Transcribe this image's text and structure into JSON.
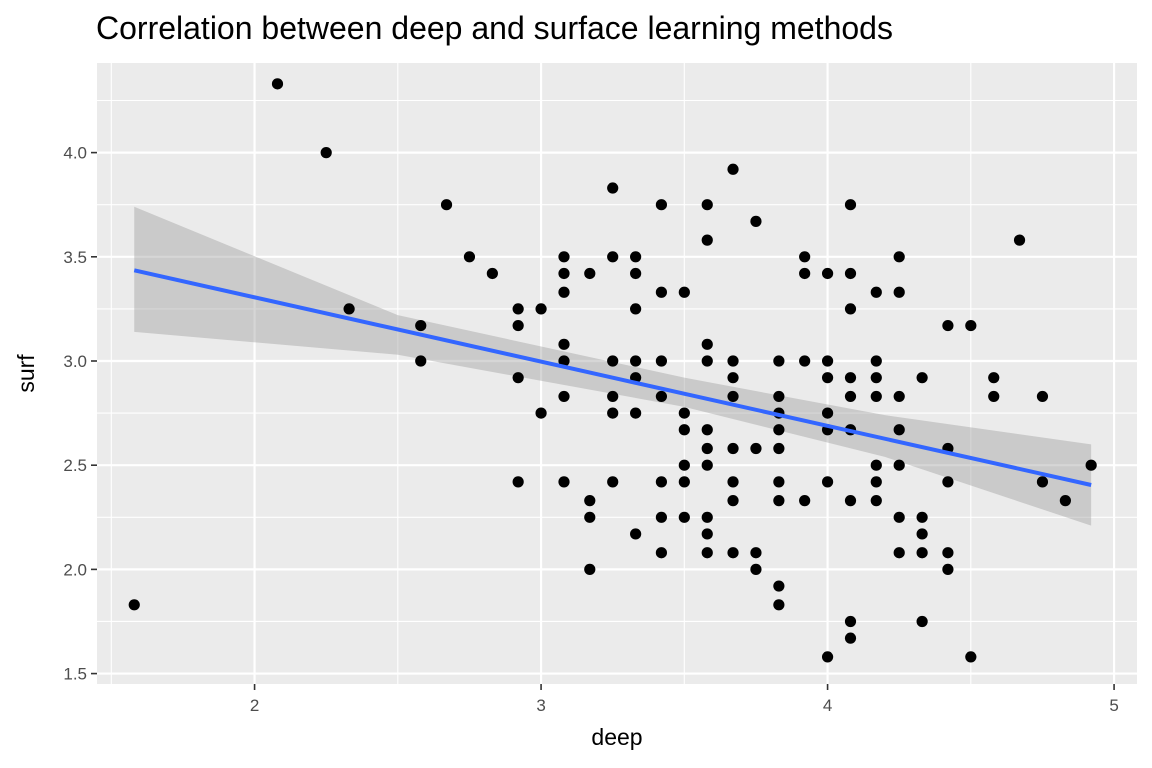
{
  "chart_data": {
    "type": "scatter",
    "title": "Correlation between deep and surface learning methods",
    "xlabel": "deep",
    "ylabel": "surf",
    "xlim": [
      1.45,
      5.08
    ],
    "ylim": [
      1.45,
      4.43
    ],
    "x_ticks": [
      2,
      3,
      4,
      5
    ],
    "x_tick_labels": [
      "2",
      "3",
      "4",
      "5"
    ],
    "y_ticks": [
      1.5,
      2.0,
      2.5,
      3.0,
      3.5,
      4.0
    ],
    "y_tick_labels": [
      "1.5",
      "2.0",
      "2.5",
      "3.0",
      "3.5",
      "4.0"
    ],
    "grid": true,
    "colors": {
      "panel": "#ebebeb",
      "grid": "#ffffff",
      "points": "#000000",
      "fit_line": "#3366ff",
      "ribbon": "#999999"
    },
    "fit": {
      "method": "lm",
      "x": [
        1.58,
        4.92
      ],
      "y": [
        3.435,
        2.405
      ],
      "ribbon": [
        {
          "x": 1.58,
          "lower": 3.14,
          "upper": 3.74
        },
        {
          "x": 2.5,
          "lower": 3.03,
          "upper": 3.22
        },
        {
          "x": 3.5,
          "lower": 2.78,
          "upper": 2.92
        },
        {
          "x": 4.2,
          "lower": 2.54,
          "upper": 2.74
        },
        {
          "x": 4.92,
          "lower": 2.21,
          "upper": 2.6
        }
      ]
    },
    "points": [
      [
        1.58,
        1.83
      ],
      [
        2.08,
        4.33
      ],
      [
        2.25,
        4.0
      ],
      [
        2.33,
        3.25
      ],
      [
        2.58,
        3.17
      ],
      [
        2.58,
        3.0
      ],
      [
        2.67,
        3.75
      ],
      [
        2.75,
        3.5
      ],
      [
        2.83,
        3.42
      ],
      [
        2.92,
        3.25
      ],
      [
        2.92,
        3.17
      ],
      [
        2.92,
        2.92
      ],
      [
        2.92,
        2.42
      ],
      [
        3.0,
        3.25
      ],
      [
        3.0,
        2.75
      ],
      [
        3.08,
        3.5
      ],
      [
        3.08,
        3.42
      ],
      [
        3.08,
        3.33
      ],
      [
        3.08,
        3.08
      ],
      [
        3.08,
        3.0
      ],
      [
        3.08,
        2.83
      ],
      [
        3.08,
        2.42
      ],
      [
        3.17,
        3.42
      ],
      [
        3.17,
        2.33
      ],
      [
        3.17,
        2.25
      ],
      [
        3.17,
        2.0
      ],
      [
        3.25,
        3.83
      ],
      [
        3.25,
        3.5
      ],
      [
        3.25,
        3.0
      ],
      [
        3.25,
        2.83
      ],
      [
        3.25,
        2.75
      ],
      [
        3.25,
        2.42
      ],
      [
        3.33,
        3.5
      ],
      [
        3.33,
        3.42
      ],
      [
        3.33,
        3.25
      ],
      [
        3.33,
        3.0
      ],
      [
        3.33,
        2.92
      ],
      [
        3.33,
        2.75
      ],
      [
        3.33,
        2.17
      ],
      [
        3.42,
        3.75
      ],
      [
        3.42,
        3.33
      ],
      [
        3.42,
        3.0
      ],
      [
        3.42,
        2.83
      ],
      [
        3.42,
        2.42
      ],
      [
        3.42,
        2.25
      ],
      [
        3.42,
        2.08
      ],
      [
        3.5,
        3.33
      ],
      [
        3.5,
        2.75
      ],
      [
        3.5,
        2.67
      ],
      [
        3.5,
        2.5
      ],
      [
        3.5,
        2.42
      ],
      [
        3.5,
        2.25
      ],
      [
        3.58,
        3.75
      ],
      [
        3.58,
        3.58
      ],
      [
        3.58,
        3.08
      ],
      [
        3.58,
        3.0
      ],
      [
        3.58,
        2.67
      ],
      [
        3.58,
        2.58
      ],
      [
        3.58,
        2.5
      ],
      [
        3.58,
        2.25
      ],
      [
        3.58,
        2.17
      ],
      [
        3.58,
        2.08
      ],
      [
        3.67,
        3.92
      ],
      [
        3.67,
        3.0
      ],
      [
        3.67,
        2.92
      ],
      [
        3.67,
        2.83
      ],
      [
        3.67,
        2.58
      ],
      [
        3.67,
        2.42
      ],
      [
        3.67,
        2.33
      ],
      [
        3.67,
        2.08
      ],
      [
        3.75,
        3.67
      ],
      [
        3.75,
        2.58
      ],
      [
        3.75,
        2.08
      ],
      [
        3.75,
        2.0
      ],
      [
        3.83,
        3.0
      ],
      [
        3.83,
        2.83
      ],
      [
        3.83,
        2.75
      ],
      [
        3.83,
        2.67
      ],
      [
        3.83,
        2.58
      ],
      [
        3.83,
        2.42
      ],
      [
        3.83,
        2.33
      ],
      [
        3.83,
        1.92
      ],
      [
        3.83,
        1.83
      ],
      [
        3.92,
        3.5
      ],
      [
        3.92,
        3.42
      ],
      [
        3.92,
        3.0
      ],
      [
        3.92,
        2.33
      ],
      [
        4.0,
        3.42
      ],
      [
        4.0,
        3.0
      ],
      [
        4.0,
        2.92
      ],
      [
        4.0,
        2.75
      ],
      [
        4.0,
        2.67
      ],
      [
        4.0,
        2.42
      ],
      [
        4.0,
        1.58
      ],
      [
        4.08,
        3.75
      ],
      [
        4.08,
        3.42
      ],
      [
        4.08,
        3.25
      ],
      [
        4.08,
        2.92
      ],
      [
        4.08,
        2.83
      ],
      [
        4.08,
        2.67
      ],
      [
        4.08,
        2.33
      ],
      [
        4.08,
        1.75
      ],
      [
        4.08,
        1.67
      ],
      [
        4.17,
        3.33
      ],
      [
        4.17,
        3.0
      ],
      [
        4.17,
        2.92
      ],
      [
        4.17,
        2.83
      ],
      [
        4.17,
        2.5
      ],
      [
        4.17,
        2.42
      ],
      [
        4.17,
        2.33
      ],
      [
        4.25,
        3.5
      ],
      [
        4.25,
        3.33
      ],
      [
        4.25,
        2.83
      ],
      [
        4.25,
        2.67
      ],
      [
        4.25,
        2.5
      ],
      [
        4.25,
        2.25
      ],
      [
        4.25,
        2.08
      ],
      [
        4.33,
        2.92
      ],
      [
        4.33,
        2.25
      ],
      [
        4.33,
        2.17
      ],
      [
        4.33,
        2.08
      ],
      [
        4.33,
        1.75
      ],
      [
        4.42,
        3.17
      ],
      [
        4.42,
        2.58
      ],
      [
        4.42,
        2.42
      ],
      [
        4.42,
        2.08
      ],
      [
        4.42,
        2.0
      ],
      [
        4.5,
        3.17
      ],
      [
        4.5,
        1.58
      ],
      [
        4.58,
        2.92
      ],
      [
        4.58,
        2.83
      ],
      [
        4.67,
        3.58
      ],
      [
        4.75,
        2.83
      ],
      [
        4.75,
        2.42
      ],
      [
        4.83,
        2.33
      ],
      [
        4.92,
        2.5
      ]
    ]
  }
}
